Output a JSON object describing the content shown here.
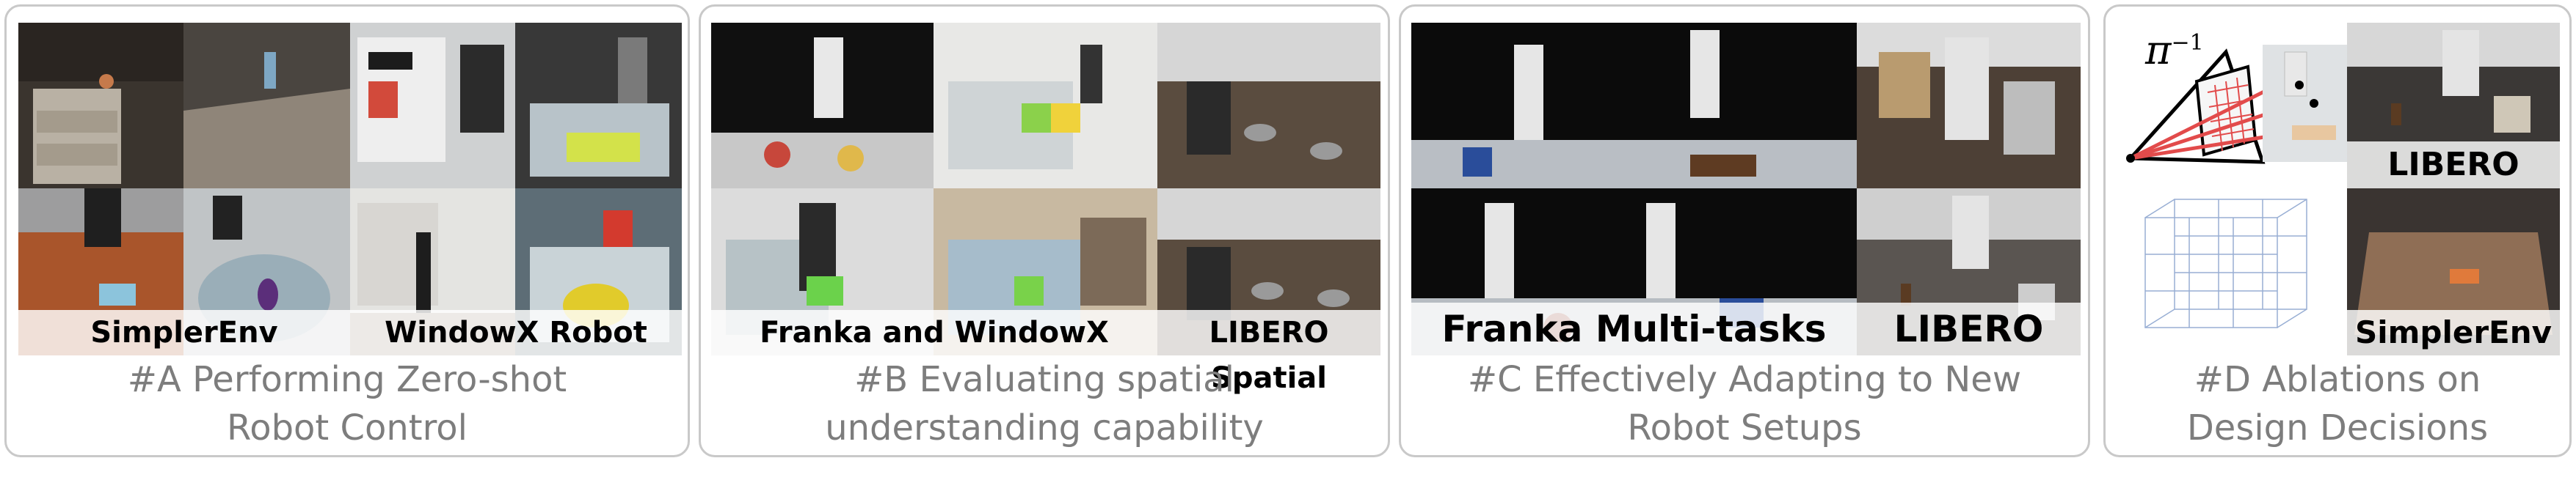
{
  "panels": {
    "a": {
      "caption": "#A Performing Zero-shot Robot Control",
      "labels": [
        "SimplerEnv",
        "WindowX Robot"
      ]
    },
    "b": {
      "caption": "#B Evaluating spatial understanding capability",
      "labels": [
        "Franka and WindowX",
        "LIBERO Spatial"
      ]
    },
    "c": {
      "caption": "#C Effectively Adapting to New Robot Setups",
      "labels": [
        "Franka Multi-tasks",
        "LIBERO"
      ]
    },
    "d": {
      "caption": "#D Ablations on Design Decisions",
      "labels": [
        "LIBERO",
        "SimplerEnv"
      ],
      "symbol": "π",
      "symbol_sup": "−1"
    }
  },
  "colors": {
    "border": "#c9c9c9",
    "caption": "#7d7d7d"
  }
}
